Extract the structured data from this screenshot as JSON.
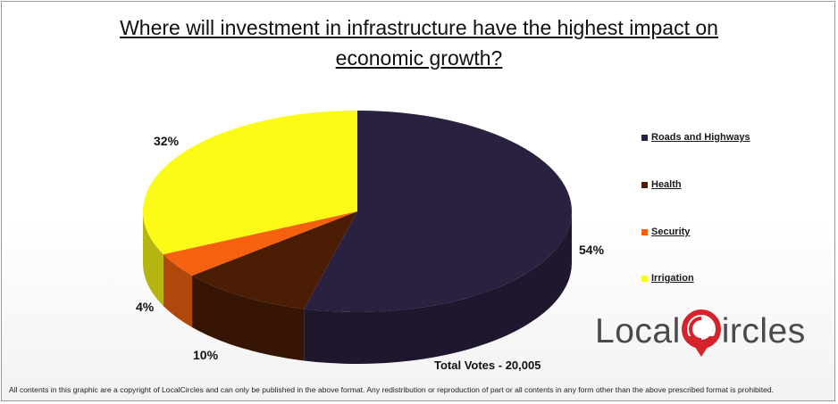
{
  "chart_data": {
    "type": "pie",
    "title_lines": [
      "Where will investment in infrastructure have the highest impact on",
      "economic growth?"
    ],
    "slices": [
      {
        "label": "Roads and Highways",
        "value": 54,
        "display": "54%",
        "color": "#2a2040"
      },
      {
        "label": "Health",
        "value": 10,
        "display": "10%",
        "color": "#4b1d05"
      },
      {
        "label": "Security",
        "value": 4,
        "display": "4%",
        "color": "#f5620f"
      },
      {
        "label": "Irrigation",
        "value": 32,
        "display": "32%",
        "color": "#fbfb17"
      }
    ],
    "legend_position": "right",
    "total_votes": "Total Votes - 20,005"
  },
  "brand": {
    "name_before": "Local",
    "name_after": "ircles",
    "accent_color": "#d4232b"
  },
  "footer": "All contents in this graphic are a copyright of LocalCircles and can only be published in the above format. Any redistribution or reproduction of part or all contents in any form other than the above prescribed format is prohibited."
}
